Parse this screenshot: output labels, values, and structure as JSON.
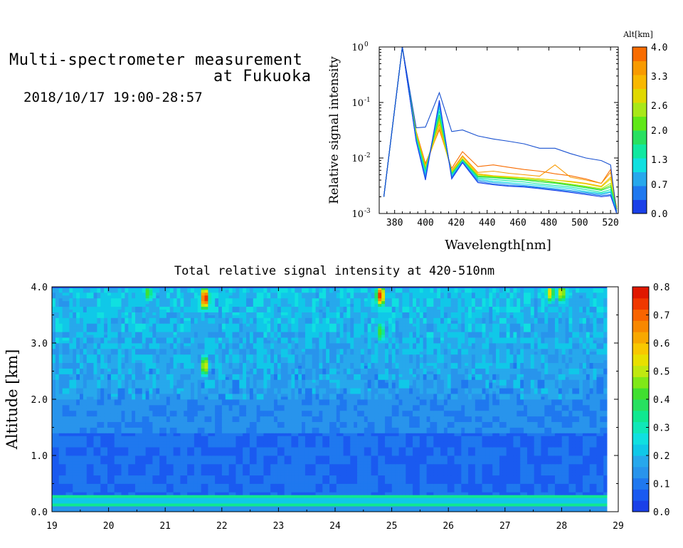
{
  "header": {
    "title_line1": "Multi-spectrometer measurement",
    "title_line2": "at Fukuoka",
    "subtitle": "2018/10/17 19:00-28:57"
  },
  "chart_data": [
    {
      "type": "line",
      "xlabel": "Wavelength[nm]",
      "ylabel": "Relative signal intensity",
      "yscale": "log",
      "xlim": [
        370,
        525
      ],
      "ylim": [
        0.001,
        1
      ],
      "xticks": [
        380,
        400,
        420,
        440,
        460,
        480,
        500,
        520
      ],
      "yticks": [
        0.001,
        0.01,
        0.1,
        1
      ],
      "ytick_labels": [
        "10",
        "10",
        "10",
        "10"
      ],
      "ytick_exponents": [
        "-3",
        "-2",
        "-1",
        "0"
      ],
      "grid": false,
      "x": [
        373,
        385,
        394,
        400,
        409,
        417,
        424,
        434,
        444,
        454,
        464,
        474,
        484,
        494,
        504,
        514,
        520,
        524
      ],
      "colorbar": {
        "title": "Alt[km]",
        "tick_labels": [
          "4.0",
          "3.3",
          "2.6",
          "2.0",
          "1.3",
          "0.7",
          "0.0"
        ],
        "tick_values": [
          4.0,
          3.3,
          2.6,
          2.0,
          1.3,
          0.7,
          0.0
        ],
        "colors": [
          "#1a40e8",
          "#1f78ef",
          "#27a8ec",
          "#10e0e0",
          "#10e8a0",
          "#28e060",
          "#60e818",
          "#a8e818",
          "#e0d800",
          "#f8b800",
          "#f89a00",
          "#f86c00"
        ]
      },
      "series": [
        {
          "alt": 4.0,
          "color": "#f86c00",
          "values": [
            0.002,
            1.0,
            0.03,
            0.008,
            0.032,
            0.0065,
            0.013,
            0.007,
            0.0075,
            0.0068,
            0.0062,
            0.0058,
            0.0052,
            0.0048,
            0.0042,
            0.0035,
            0.0062,
            0.0012
          ]
        },
        {
          "alt": 3.6,
          "color": "#f89a00",
          "values": [
            0.002,
            1.0,
            0.028,
            0.0075,
            0.04,
            0.006,
            0.011,
            0.0055,
            0.0058,
            0.0053,
            0.005,
            0.0047,
            0.0075,
            0.0045,
            0.004,
            0.0035,
            0.0055,
            0.0012
          ]
        },
        {
          "alt": 3.3,
          "color": "#f8b800",
          "values": [
            0.002,
            1.0,
            0.028,
            0.007,
            0.035,
            0.0058,
            0.0105,
            0.0052,
            0.0048,
            0.0046,
            0.0044,
            0.0042,
            0.004,
            0.0038,
            0.0035,
            0.0031,
            0.0045,
            0.0013
          ]
        },
        {
          "alt": 2.9,
          "color": "#e0d800",
          "values": [
            0.002,
            1.0,
            0.027,
            0.0068,
            0.045,
            0.0057,
            0.0098,
            0.005,
            0.0047,
            0.0045,
            0.0044,
            0.0042,
            0.004,
            0.0037,
            0.0034,
            0.003,
            0.0042,
            0.0013
          ]
        },
        {
          "alt": 2.6,
          "color": "#a8e818",
          "values": [
            0.002,
            1.0,
            0.026,
            0.0065,
            0.05,
            0.0055,
            0.0095,
            0.0048,
            0.0046,
            0.0044,
            0.0042,
            0.004,
            0.0037,
            0.0034,
            0.0031,
            0.0028,
            0.0035,
            0.0012
          ]
        },
        {
          "alt": 2.3,
          "color": "#60e818",
          "values": [
            0.002,
            1.0,
            0.025,
            0.0062,
            0.055,
            0.0053,
            0.0093,
            0.0047,
            0.0045,
            0.0043,
            0.0041,
            0.0039,
            0.0036,
            0.0033,
            0.003,
            0.0027,
            0.0032,
            0.0012
          ]
        },
        {
          "alt": 2.0,
          "color": "#28e060",
          "values": [
            0.002,
            1.0,
            0.024,
            0.006,
            0.06,
            0.0052,
            0.0092,
            0.0046,
            0.0044,
            0.0042,
            0.004,
            0.0037,
            0.0035,
            0.0032,
            0.0029,
            0.0026,
            0.003,
            0.0011
          ]
        },
        {
          "alt": 1.6,
          "color": "#10e8a0",
          "values": [
            0.002,
            1.0,
            0.023,
            0.0056,
            0.07,
            0.005,
            0.009,
            0.0044,
            0.0041,
            0.0039,
            0.0037,
            0.0034,
            0.0032,
            0.003,
            0.0027,
            0.0024,
            0.0027,
            0.0011
          ]
        },
        {
          "alt": 1.3,
          "color": "#10e0e0",
          "values": [
            0.002,
            1.0,
            0.022,
            0.0052,
            0.08,
            0.0048,
            0.0088,
            0.0042,
            0.0038,
            0.0036,
            0.0034,
            0.0032,
            0.003,
            0.0028,
            0.0025,
            0.0023,
            0.0025,
            0.0011
          ]
        },
        {
          "alt": 0.9,
          "color": "#27a8ec",
          "values": [
            0.002,
            1.0,
            0.021,
            0.0048,
            0.09,
            0.0046,
            0.0086,
            0.004,
            0.0036,
            0.0034,
            0.0032,
            0.003,
            0.0028,
            0.0026,
            0.0024,
            0.0022,
            0.0024,
            0.001
          ]
        },
        {
          "alt": 0.6,
          "color": "#1f78ef",
          "values": [
            0.002,
            1.0,
            0.02,
            0.0044,
            0.1,
            0.0044,
            0.0084,
            0.0038,
            0.0034,
            0.0032,
            0.0031,
            0.0029,
            0.0027,
            0.0025,
            0.0023,
            0.0021,
            0.0022,
            0.001
          ]
        },
        {
          "alt": 0.3,
          "color": "#1a40e8",
          "values": [
            0.002,
            1.0,
            0.02,
            0.004,
            0.11,
            0.0042,
            0.0082,
            0.0036,
            0.0033,
            0.0031,
            0.003,
            0.0028,
            0.0026,
            0.0024,
            0.0022,
            0.002,
            0.0021,
            0.001
          ]
        },
        {
          "alt": 0.0,
          "color": "#1850d0",
          "values": [
            0.002,
            1.0,
            0.035,
            0.036,
            0.15,
            0.03,
            0.032,
            0.025,
            0.022,
            0.02,
            0.018,
            0.015,
            0.015,
            0.012,
            0.01,
            0.009,
            0.0075,
            0.001
          ]
        }
      ]
    },
    {
      "type": "heatmap",
      "title": "Total relative signal intensity at 420-510nm",
      "xlabel": "",
      "ylabel": "Altitude [km]",
      "xlim": [
        19,
        29
      ],
      "ylim": [
        0,
        4
      ],
      "xticks": [
        19,
        20,
        21,
        22,
        23,
        24,
        25,
        26,
        27,
        28,
        29
      ],
      "xtick_labels": [
        "19",
        "20",
        "21",
        "22",
        "23",
        "24",
        "25",
        "26",
        "27",
        "28",
        "29"
      ],
      "yticks": [
        0,
        1,
        2,
        3,
        4
      ],
      "ytick_labels": [
        "0.0",
        "1.0",
        "2.0",
        "3.0",
        "4.0"
      ],
      "data_xmax": 28.8,
      "colorbar": {
        "range": [
          0,
          0.8
        ],
        "tick_values": [
          0.8,
          0.7,
          0.6,
          0.5,
          0.4,
          0.3,
          0.2,
          0.1,
          0.0
        ],
        "tick_labels": [
          "0.8",
          "0.7",
          "0.6",
          "0.5",
          "0.4",
          "0.3",
          "0.2",
          "0.1",
          "0.0"
        ],
        "colors": [
          "#1a40e8",
          "#1a5af0",
          "#1f78ef",
          "#2894ec",
          "#27a8ec",
          "#10c8e8",
          "#10e0e0",
          "#10e8b8",
          "#10e890",
          "#28e060",
          "#40e030",
          "#80e818",
          "#c0e810",
          "#e8e000",
          "#f8c800",
          "#f8a800",
          "#f88800",
          "#f86400",
          "#f03800",
          "#e01800"
        ]
      },
      "features": [
        {
          "x": 21.7,
          "y": 3.8,
          "value": 0.8
        },
        {
          "x": 21.7,
          "y": 2.6,
          "value": 0.55
        },
        {
          "x": 24.8,
          "y": 3.85,
          "value": 0.75
        },
        {
          "x": 24.8,
          "y": 3.2,
          "value": 0.45
        },
        {
          "x": 27.8,
          "y": 3.9,
          "value": 0.55
        },
        {
          "x": 28.0,
          "y": 3.9,
          "value": 0.55
        },
        {
          "x": 20.7,
          "y": 3.9,
          "value": 0.45
        }
      ],
      "surface_layer": {
        "y_low": 0.15,
        "y_high": 0.3,
        "value": 0.4
      }
    }
  ]
}
